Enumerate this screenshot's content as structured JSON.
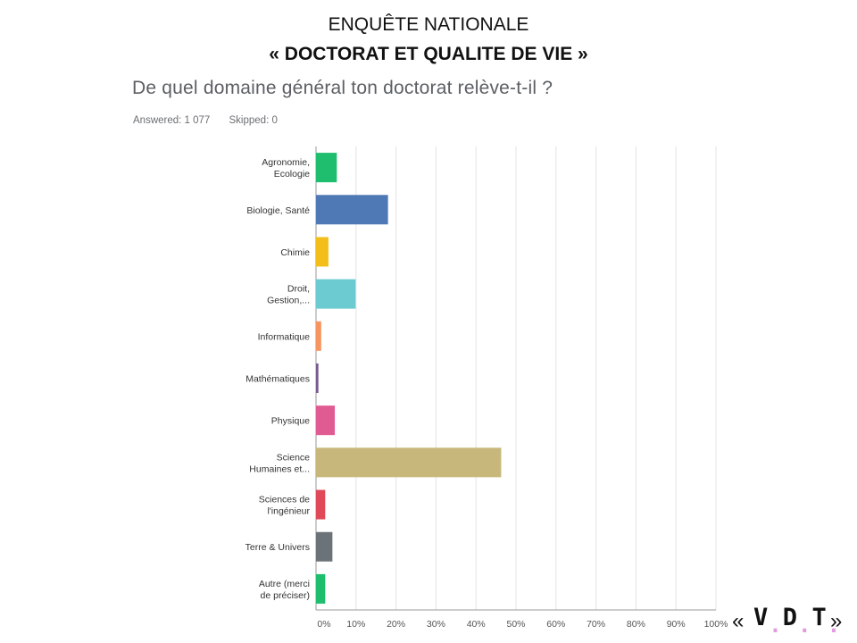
{
  "slide": {
    "title_line1": "ENQUÊTE NATIONALE",
    "title_line2": "« DOCTORAT ET QUALITE DE VIE »"
  },
  "survey": {
    "question": "De quel domaine général ton doctorat relève-t-il ?",
    "answered": "Answered: 1 077",
    "skipped": "Skipped: 0"
  },
  "logo": {
    "open_quote": "«",
    "close_quote": "»",
    "letters": [
      "V",
      "D",
      "T"
    ],
    "dot": ".",
    "dot_color": "#e39be0"
  },
  "chart_data": {
    "type": "bar",
    "orientation": "horizontal",
    "categories": [
      "Agronomie, Ecologie",
      "Biologie, Santé",
      "Chimie",
      "Droit, Gestion,...",
      "Informatique",
      "Mathématiques",
      "Physique",
      "Science Humaines et...",
      "Sciences de l'ingénieur",
      "Terre & Univers",
      "Autre (merci de préciser)"
    ],
    "category_label_lines": [
      [
        "Agronomie,",
        "Ecologie"
      ],
      [
        "Biologie, Santé"
      ],
      [
        "Chimie"
      ],
      [
        "Droit,",
        "Gestion,..."
      ],
      [
        "Informatique"
      ],
      [
        "Mathématiques"
      ],
      [
        "Physique"
      ],
      [
        "Science",
        "Humaines et..."
      ],
      [
        "Sciences de",
        "l'ingénieur"
      ],
      [
        "Terre & Univers"
      ],
      [
        "Autre (merci",
        "de préciser)"
      ]
    ],
    "values": [
      5.2,
      18.0,
      3.1,
      9.9,
      1.3,
      0.6,
      4.7,
      46.3,
      2.3,
      4.1,
      2.3
    ],
    "colors": [
      "#1fbe6e",
      "#4f79b5",
      "#f4be1a",
      "#6ccbd0",
      "#f79560",
      "#7b5a91",
      "#e15b93",
      "#c8b77a",
      "#e04a58",
      "#6b7379",
      "#1fbe6e"
    ],
    "xlim": [
      0,
      100
    ],
    "xticks": [
      "0%",
      "10%",
      "20%",
      "30%",
      "40%",
      "50%",
      "60%",
      "70%",
      "80%",
      "90%",
      "100%"
    ],
    "grid": true,
    "title": "",
    "xlabel": "",
    "ylabel": ""
  }
}
